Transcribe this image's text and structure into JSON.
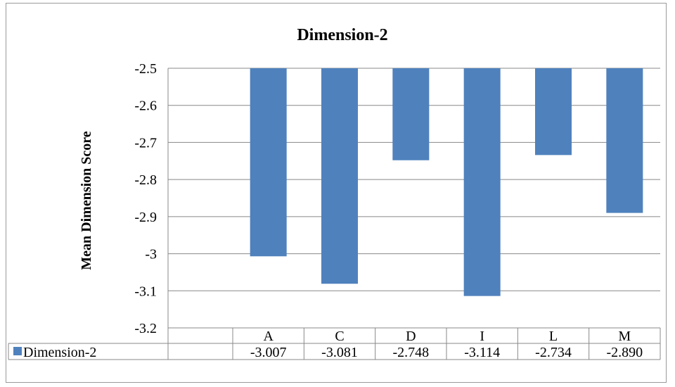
{
  "chart_data": {
    "type": "bar",
    "title": "Dimension-2",
    "xlabel": "",
    "ylabel": "Mean Dimension Score",
    "categories": [
      "A",
      "C",
      "D",
      "I",
      "L",
      "M"
    ],
    "series": [
      {
        "name": "Dimension-2",
        "values": [
          -3.007,
          -3.081,
          -2.748,
          -3.114,
          -2.734,
          -2.89
        ],
        "value_labels": [
          "-3.007",
          "-3.081",
          "-2.748",
          "-3.114",
          "-2.734",
          "-2.890"
        ],
        "color": "#4f81bd"
      }
    ],
    "ylim": [
      -3.2,
      -2.5
    ],
    "y_ticks": [
      -2.5,
      -2.6,
      -2.7,
      -2.8,
      -2.9,
      -3,
      -3.1,
      -3.2
    ],
    "y_tick_labels": [
      "-2.5",
      "-2.6",
      "-2.7",
      "-2.8",
      "-2.9",
      "-3",
      "-3.1",
      "-3.2"
    ],
    "bars_hang_from": -2.5,
    "grid": true,
    "legend": "data-table-left",
    "data_table": true,
    "colors": {
      "bar": "#4f81bd",
      "grid": "#888888",
      "frame": "#9a9a9a"
    }
  }
}
